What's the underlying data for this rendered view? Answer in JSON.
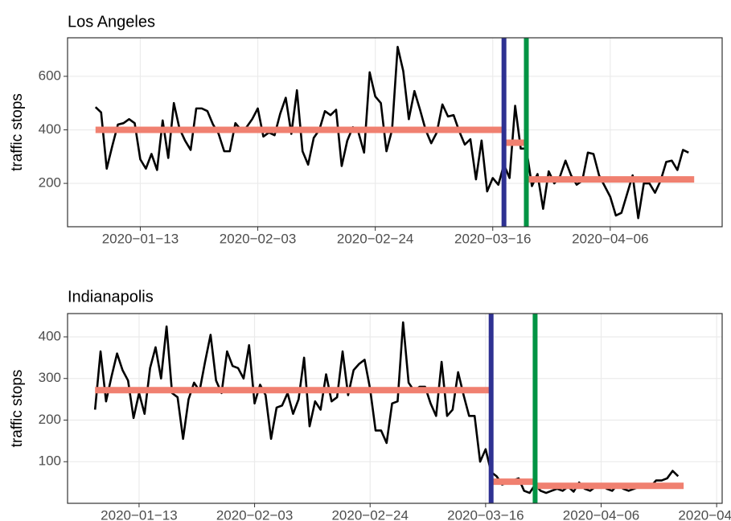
{
  "chart_data": [
    {
      "type": "line",
      "title": "Los Angeles",
      "y_label": "traffic stops",
      "x": [
        "2020-01-05",
        "2020-01-06",
        "2020-01-07",
        "2020-01-08",
        "2020-01-09",
        "2020-01-10",
        "2020-01-11",
        "2020-01-12",
        "2020-01-13",
        "2020-01-14",
        "2020-01-15",
        "2020-01-16",
        "2020-01-17",
        "2020-01-18",
        "2020-01-19",
        "2020-01-20",
        "2020-01-21",
        "2020-01-22",
        "2020-01-23",
        "2020-01-24",
        "2020-01-25",
        "2020-01-26",
        "2020-01-27",
        "2020-01-28",
        "2020-01-29",
        "2020-01-30",
        "2020-01-31",
        "2020-02-01",
        "2020-02-02",
        "2020-02-03",
        "2020-02-04",
        "2020-02-05",
        "2020-02-06",
        "2020-02-07",
        "2020-02-08",
        "2020-02-09",
        "2020-02-10",
        "2020-02-11",
        "2020-02-12",
        "2020-02-13",
        "2020-02-14",
        "2020-02-15",
        "2020-02-16",
        "2020-02-17",
        "2020-02-18",
        "2020-02-19",
        "2020-02-20",
        "2020-02-21",
        "2020-02-22",
        "2020-02-23",
        "2020-02-24",
        "2020-02-25",
        "2020-02-26",
        "2020-02-27",
        "2020-02-28",
        "2020-02-29",
        "2020-03-01",
        "2020-03-02",
        "2020-03-03",
        "2020-03-04",
        "2020-03-05",
        "2020-03-06",
        "2020-03-07",
        "2020-03-08",
        "2020-03-09",
        "2020-03-10",
        "2020-03-11",
        "2020-03-12",
        "2020-03-13",
        "2020-03-14",
        "2020-03-15",
        "2020-03-16",
        "2020-03-17",
        "2020-03-18",
        "2020-03-19",
        "2020-03-20",
        "2020-03-21",
        "2020-03-22",
        "2020-03-23",
        "2020-03-24",
        "2020-03-25",
        "2020-03-26",
        "2020-03-27",
        "2020-03-28",
        "2020-03-29",
        "2020-03-30",
        "2020-03-31",
        "2020-04-01",
        "2020-04-02",
        "2020-04-03",
        "2020-04-04",
        "2020-04-05",
        "2020-04-06",
        "2020-04-07",
        "2020-04-08",
        "2020-04-09",
        "2020-04-10",
        "2020-04-11",
        "2020-04-12",
        "2020-04-13",
        "2020-04-14",
        "2020-04-15",
        "2020-04-16",
        "2020-04-17",
        "2020-04-18",
        "2020-04-19",
        "2020-04-20"
      ],
      "series": [
        {
          "color": "#000000",
          "values": [
            485,
            465,
            255,
            340,
            420,
            425,
            440,
            425,
            290,
            255,
            310,
            250,
            435,
            295,
            500,
            405,
            360,
            325,
            480,
            480,
            470,
            420,
            385,
            320,
            320,
            425,
            400,
            410,
            440,
            480,
            375,
            390,
            380,
            460,
            520,
            385,
            548,
            320,
            270,
            370,
            400,
            470,
            455,
            475,
            265,
            360,
            410,
            390,
            315,
            615,
            525,
            500,
            320,
            400,
            710,
            620,
            440,
            545,
            475,
            400,
            350,
            390,
            495,
            450,
            455,
            395,
            345,
            365,
            215,
            360,
            170,
            220,
            195,
            270,
            220,
            490,
            330,
            330,
            190,
            235,
            105,
            245,
            200,
            225,
            285,
            230,
            195,
            210,
            315,
            310,
            230,
            190,
            150,
            80,
            90,
            160,
            230,
            70,
            200,
            200,
            165,
            210,
            280,
            285,
            250,
            325,
            315
          ]
        }
      ],
      "xlim": [
        "2019-12-31",
        "2020-04-26"
      ],
      "xticks": [
        {
          "value": "2020-01-13",
          "label": "2020−01−13"
        },
        {
          "value": "2020-02-03",
          "label": "2020−02−03"
        },
        {
          "value": "2020-02-24",
          "label": "2020−02−24"
        },
        {
          "value": "2020-03-16",
          "label": "2020−03−16"
        },
        {
          "value": "2020-04-06",
          "label": "2020−04−06"
        }
      ],
      "ylim": [
        38,
        744
      ],
      "yticks": [
        200,
        400,
        600
      ],
      "grid": true,
      "segments": [
        {
          "x": [
            "2020-01-05",
            "2020-03-18"
          ],
          "y": 400,
          "color": "#f08070"
        },
        {
          "x": [
            "2020-03-18",
            "2020-03-22"
          ],
          "y": 352,
          "color": "#f08070"
        },
        {
          "x": [
            "2020-03-22",
            "2020-04-21"
          ],
          "y": 215,
          "color": "#f08070"
        }
      ],
      "vlines": [
        {
          "x": "2020-03-18",
          "color": "#2e3192"
        },
        {
          "x": "2020-03-22",
          "color": "#009444"
        }
      ]
    },
    {
      "type": "line",
      "title": "Indianapolis",
      "y_label": "traffic stops",
      "x": [
        "2020-01-05",
        "2020-01-06",
        "2020-01-07",
        "2020-01-08",
        "2020-01-09",
        "2020-01-10",
        "2020-01-11",
        "2020-01-12",
        "2020-01-13",
        "2020-01-14",
        "2020-01-15",
        "2020-01-16",
        "2020-01-17",
        "2020-01-18",
        "2020-01-19",
        "2020-01-20",
        "2020-01-21",
        "2020-01-22",
        "2020-01-23",
        "2020-01-24",
        "2020-01-25",
        "2020-01-26",
        "2020-01-27",
        "2020-01-28",
        "2020-01-29",
        "2020-01-30",
        "2020-01-31",
        "2020-02-01",
        "2020-02-02",
        "2020-02-03",
        "2020-02-04",
        "2020-02-05",
        "2020-02-06",
        "2020-02-07",
        "2020-02-08",
        "2020-02-09",
        "2020-02-10",
        "2020-02-11",
        "2020-02-12",
        "2020-02-13",
        "2020-02-14",
        "2020-02-15",
        "2020-02-16",
        "2020-02-17",
        "2020-02-18",
        "2020-02-19",
        "2020-02-20",
        "2020-02-21",
        "2020-02-22",
        "2020-02-23",
        "2020-02-24",
        "2020-02-25",
        "2020-02-26",
        "2020-02-27",
        "2020-02-28",
        "2020-02-29",
        "2020-03-01",
        "2020-03-02",
        "2020-03-03",
        "2020-03-04",
        "2020-03-05",
        "2020-03-06",
        "2020-03-07",
        "2020-03-08",
        "2020-03-09",
        "2020-03-10",
        "2020-03-11",
        "2020-03-12",
        "2020-03-13",
        "2020-03-14",
        "2020-03-15",
        "2020-03-16",
        "2020-03-17",
        "2020-03-18",
        "2020-03-19",
        "2020-03-20",
        "2020-03-21",
        "2020-03-22",
        "2020-03-23",
        "2020-03-24",
        "2020-03-25",
        "2020-03-26",
        "2020-03-27",
        "2020-03-28",
        "2020-03-29",
        "2020-03-30",
        "2020-03-31",
        "2020-04-01",
        "2020-04-02",
        "2020-04-03",
        "2020-04-04",
        "2020-04-05",
        "2020-04-06",
        "2020-04-07",
        "2020-04-08",
        "2020-04-09",
        "2020-04-10",
        "2020-04-11",
        "2020-04-12",
        "2020-04-13",
        "2020-04-14",
        "2020-04-15",
        "2020-04-16",
        "2020-04-17",
        "2020-04-18",
        "2020-04-19",
        "2020-04-20"
      ],
      "series": [
        {
          "color": "#000000",
          "values": [
            225,
            365,
            245,
            305,
            360,
            320,
            295,
            205,
            265,
            215,
            325,
            375,
            300,
            425,
            265,
            255,
            155,
            250,
            290,
            270,
            340,
            405,
            295,
            265,
            365,
            330,
            325,
            300,
            380,
            240,
            285,
            260,
            155,
            230,
            235,
            265,
            215,
            250,
            350,
            185,
            245,
            225,
            310,
            245,
            255,
            365,
            260,
            320,
            335,
            345,
            275,
            175,
            175,
            145,
            240,
            245,
            435,
            290,
            270,
            280,
            280,
            240,
            210,
            340,
            210,
            225,
            315,
            260,
            210,
            210,
            100,
            130,
            75,
            65,
            45,
            50,
            55,
            60,
            30,
            25,
            45,
            30,
            25,
            30,
            35,
            30,
            40,
            28,
            50,
            35,
            30,
            40,
            45,
            35,
            30,
            45,
            35,
            30,
            35,
            40,
            45,
            40,
            55,
            55,
            60,
            78,
            65
          ]
        }
      ],
      "xlim": [
        "2019-12-31",
        "2020-04-28"
      ],
      "xticks": [
        {
          "value": "2020-01-13",
          "label": "2020−01−13"
        },
        {
          "value": "2020-02-03",
          "label": "2020−02−03"
        },
        {
          "value": "2020-02-24",
          "label": "2020−02−24"
        },
        {
          "value": "2020-03-16",
          "label": "2020−03−16"
        },
        {
          "value": "2020-04-06",
          "label": "2020−04−06"
        },
        {
          "value": "2020-04-27",
          "label": "2020−04−27"
        }
      ],
      "ylim": [
        0,
        456
      ],
      "yticks": [
        100,
        200,
        300,
        400
      ],
      "grid": true,
      "segments": [
        {
          "x": [
            "2020-01-05",
            "2020-03-17"
          ],
          "y": 272,
          "color": "#f08070"
        },
        {
          "x": [
            "2020-03-17",
            "2020-03-25"
          ],
          "y": 52,
          "color": "#f08070"
        },
        {
          "x": [
            "2020-03-25",
            "2020-04-21"
          ],
          "y": 42,
          "color": "#f08070"
        }
      ],
      "vlines": [
        {
          "x": "2020-03-17",
          "color": "#2e3192"
        },
        {
          "x": "2020-03-25",
          "color": "#009444"
        }
      ]
    }
  ]
}
